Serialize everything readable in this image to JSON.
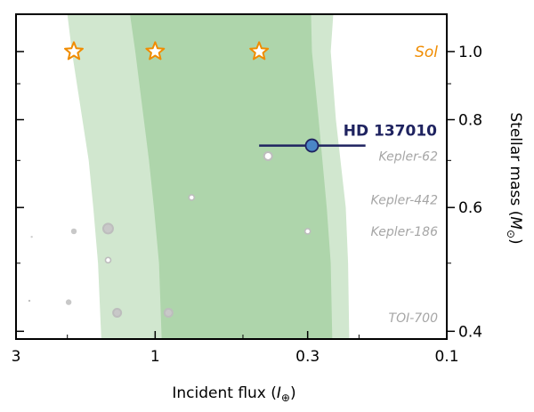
{
  "chart_data": {
    "type": "scatter",
    "xlabel": "Incident flux (",
    "xlabel_symbol": "I",
    "xlabel_sub": "⊕",
    "xlabel_end": ")",
    "ylabel": "Stellar mass (",
    "ylabel_symbol": "M",
    "ylabel_sub": "⊙",
    "ylabel_end": ")",
    "x_scale": "log",
    "x_reversed": true,
    "xlim": [
      3.0,
      0.1
    ],
    "y_scale": "log",
    "ylim": [
      0.39,
      1.13
    ],
    "x_ticks": [
      {
        "value": 3,
        "label": "3"
      },
      {
        "value": 1,
        "label": "1"
      },
      {
        "value": 0.3,
        "label": "0.3"
      },
      {
        "value": 0.1,
        "label": "0.1"
      }
    ],
    "y_ticks": [
      {
        "value": 1.0,
        "label": "1.0"
      },
      {
        "value": 0.8,
        "label": "0.8"
      },
      {
        "value": 0.6,
        "label": "0.6"
      },
      {
        "value": 0.4,
        "label": "0.4"
      }
    ],
    "habitable_zones": [
      {
        "kind": "optimistic",
        "color": "#d1e7cf",
        "inner": [
          [
            2.0,
            1.13
          ],
          [
            1.93,
            1.0
          ],
          [
            1.69,
            0.7
          ],
          [
            1.63,
            0.6
          ],
          [
            1.57,
            0.5
          ],
          [
            1.53,
            0.39
          ]
        ],
        "outer": [
          [
            0.245,
            1.13
          ],
          [
            0.25,
            1.0
          ],
          [
            0.24,
            0.8
          ],
          [
            0.222,
            0.6
          ],
          [
            0.218,
            0.5
          ],
          [
            0.216,
            0.39
          ]
        ]
      },
      {
        "kind": "conservative",
        "color": "#aed5ab",
        "inner": [
          [
            1.22,
            1.13
          ],
          [
            1.17,
            1.0
          ],
          [
            1.05,
            0.7
          ],
          [
            1.01,
            0.6
          ],
          [
            0.97,
            0.5
          ],
          [
            0.95,
            0.39
          ]
        ],
        "outer": [
          [
            0.292,
            1.13
          ],
          [
            0.29,
            1.0
          ],
          [
            0.275,
            0.8
          ],
          [
            0.258,
            0.6
          ],
          [
            0.25,
            0.5
          ],
          [
            0.247,
            0.39
          ]
        ]
      }
    ],
    "sol": {
      "label": "Sol",
      "color": "#f08c00",
      "mass": 1.0,
      "flux_values": [
        1.9,
        1.0,
        0.44
      ]
    },
    "target": {
      "label": "HD 137010",
      "label_color": "#1f2360",
      "flux": 0.29,
      "mass": 0.735,
      "flux_error_range": [
        0.44,
        0.19
      ],
      "marker_color": "#4a86c6",
      "edge_color": "#1f2360"
    },
    "planets": [
      {
        "flux": 0.41,
        "mass": 0.71,
        "size": "large",
        "fill": "#ffffff"
      },
      {
        "flux": 0.75,
        "mass": 0.62,
        "size": "small",
        "fill": "#ffffff"
      },
      {
        "flux": 0.3,
        "mass": 0.555,
        "size": "small",
        "fill": "#ffffff"
      },
      {
        "flux": 1.45,
        "mass": 0.56,
        "size": "xlarge",
        "fill": "#c8c8c8"
      },
      {
        "flux": 1.45,
        "mass": 0.505,
        "size": "small",
        "fill": "#ffffff"
      },
      {
        "flux": 1.35,
        "mass": 0.425,
        "size": "large",
        "fill": "#c8c8c8"
      },
      {
        "flux": 0.9,
        "mass": 0.425,
        "size": "large",
        "fill": "#c8c8c8"
      },
      {
        "flux": 1.9,
        "mass": 0.555,
        "size": "dot",
        "fill": "#c8c8c8"
      },
      {
        "flux": 1.98,
        "mass": 0.44,
        "size": "dot",
        "fill": "#c8c8c8"
      },
      {
        "flux": 2.65,
        "mass": 0.545,
        "size": "tiny",
        "fill": "#cfcfcf"
      },
      {
        "flux": 2.7,
        "mass": 0.442,
        "size": "tiny",
        "fill": "#bdbdbd"
      }
    ],
    "planet_labels": [
      {
        "text": "Kepler-62",
        "mass": 0.71
      },
      {
        "text": "Kepler-442",
        "mass": 0.615
      },
      {
        "text": "Kepler-186",
        "mass": 0.555
      },
      {
        "text": "TOI-700",
        "mass": 0.418
      }
    ]
  }
}
